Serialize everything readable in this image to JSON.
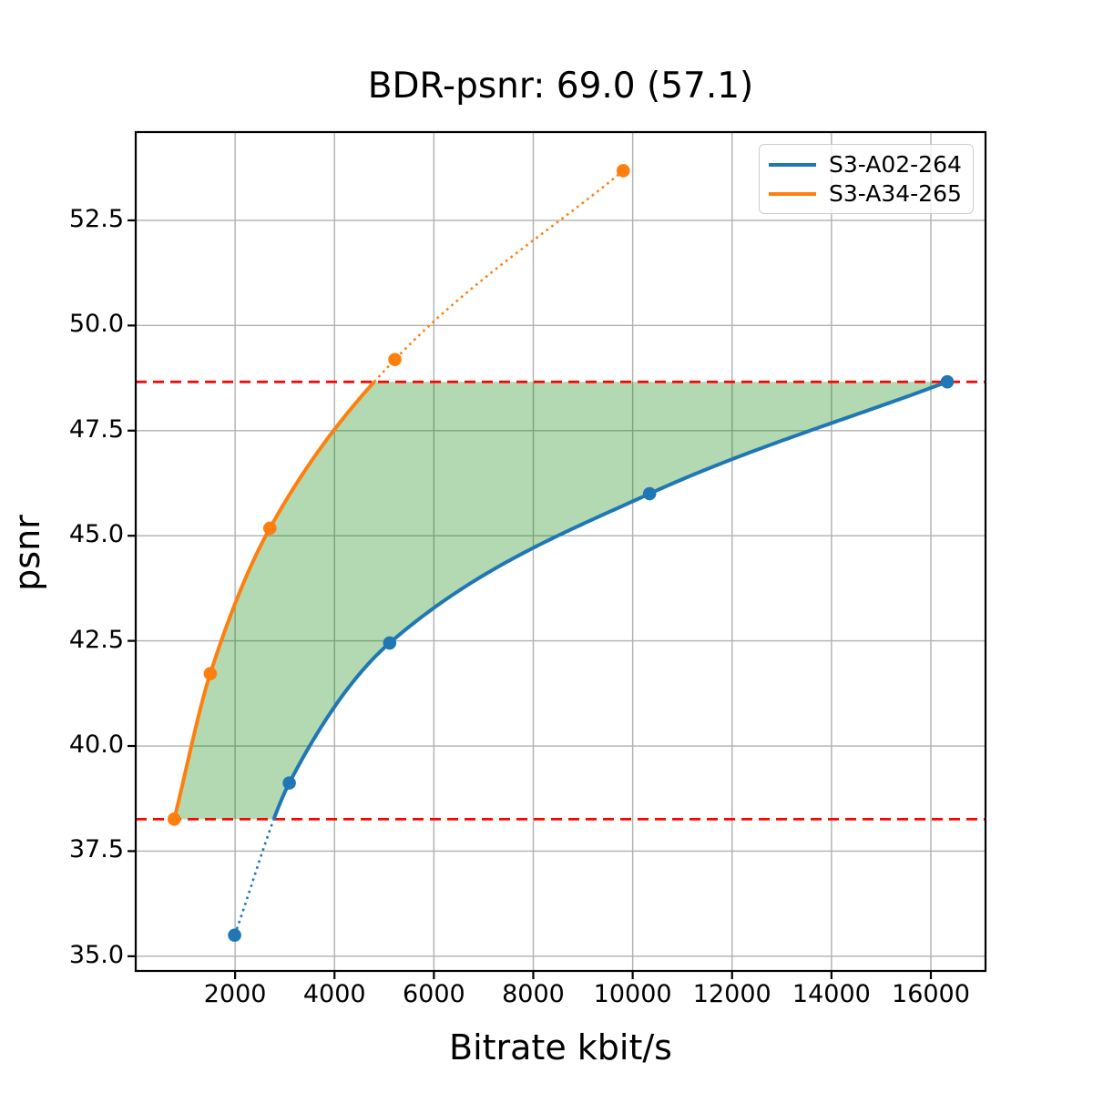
{
  "chart_data": {
    "type": "line",
    "title": "BDR-psnr: 69.0 (57.1)",
    "bdr": {
      "primary": 69.0,
      "secondary": 57.1
    },
    "xlabel": "Bitrate kbit/s",
    "ylabel": "psnr",
    "xlim": [
      0,
      17100
    ],
    "ylim": [
      34.65,
      54.6
    ],
    "x_ticks": [
      2000,
      4000,
      6000,
      8000,
      10000,
      12000,
      14000,
      16000
    ],
    "y_ticks": [
      35.0,
      37.5,
      40.0,
      42.5,
      45.0,
      47.5,
      50.0,
      52.5
    ],
    "grid": true,
    "grid_color": "#b0b0b0",
    "legend_position": "upper right",
    "series": [
      {
        "name": "S3-A02-264",
        "color": "#1f77b4",
        "x": [
          1990,
          3090,
          5110,
          10340,
          16330
        ],
        "y": [
          35.5,
          39.12,
          42.45,
          46.0,
          48.66
        ],
        "style_note": "solid inside psnr overlap band, dotted outside, round markers at data points"
      },
      {
        "name": "S3-A34-265",
        "color": "#ff7f0e",
        "x": [
          775,
          1500,
          2700,
          5215,
          9810
        ],
        "y": [
          38.26,
          41.72,
          45.18,
          49.19,
          53.68
        ],
        "style_note": "solid inside psnr overlap band, dotted outside, round markers at data points"
      }
    ],
    "hlines": {
      "values": [
        48.66,
        38.26
      ],
      "color": "#ff0000",
      "style": "dashed",
      "meaning": "psnr overlap bounds used for BD-rate integration"
    },
    "shaded_region": {
      "color": "#008000",
      "alpha": 0.3,
      "description": "area between the two interpolated curves, clipped to the psnr overlap band"
    }
  }
}
